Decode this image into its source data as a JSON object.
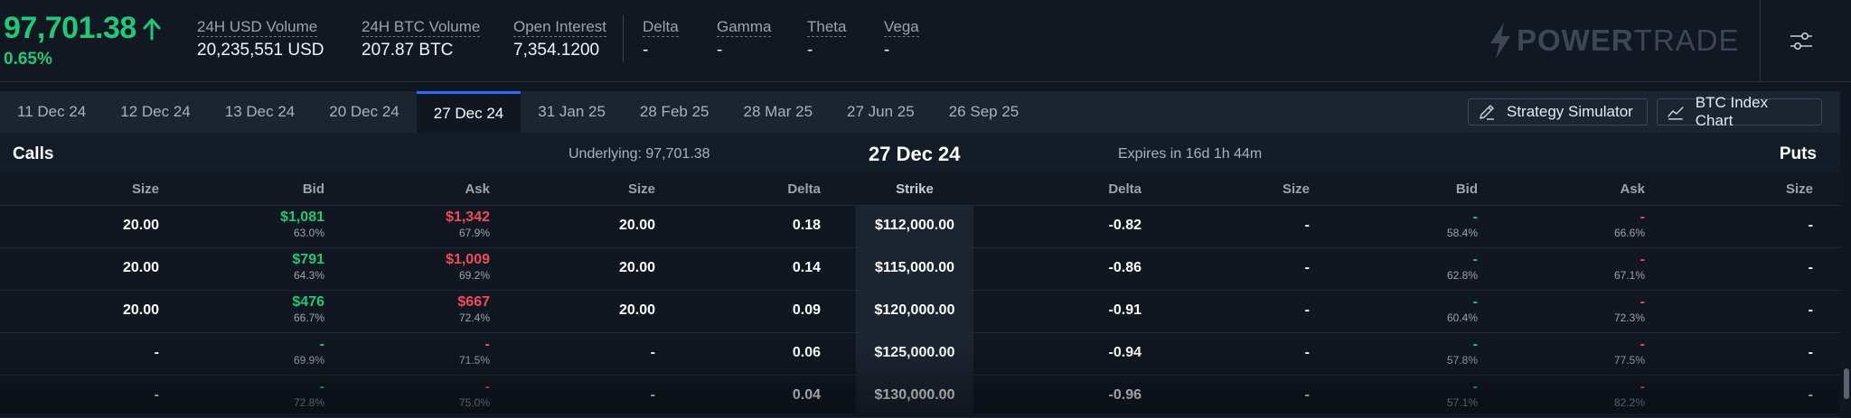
{
  "header": {
    "price": "97,701.38",
    "change": "0.65%",
    "stats": [
      {
        "label": "24H USD Volume",
        "value": "20,235,551 USD"
      },
      {
        "label": "24H BTC Volume",
        "value": "207.87 BTC"
      },
      {
        "label": "Open Interest",
        "value": "7,354.1200"
      },
      {
        "label": "Delta",
        "value": "-"
      },
      {
        "label": "Gamma",
        "value": "-"
      },
      {
        "label": "Theta",
        "value": "-"
      },
      {
        "label": "Vega",
        "value": "-"
      }
    ],
    "logo_bold": "POWER",
    "logo_light": "TRADE"
  },
  "tabs": [
    "11 Dec 24",
    "12 Dec 24",
    "13 Dec 24",
    "20 Dec 24",
    "27 Dec 24",
    "31 Jan 25",
    "28 Feb 25",
    "28 Mar 25",
    "27 Jun 25",
    "26 Sep 25"
  ],
  "active_tab": "27 Dec 24",
  "tools": {
    "strategy_simulator": "Strategy Simulator",
    "btc_index_chart": "BTC Index Chart"
  },
  "table": {
    "calls_label": "Calls",
    "puts_label": "Puts",
    "underlying": "Underlying: 97,701.38",
    "expiry_date": "27 Dec 24",
    "expires_in": "Expires in 16d 1h 44m",
    "columns": [
      "Size",
      "Bid",
      "Ask",
      "Size",
      "Delta",
      "Strike",
      "Delta",
      "Size",
      "Bid",
      "Ask",
      "Size"
    ],
    "rows": [
      {
        "call_size": "20.00",
        "call_bid": "$1,081",
        "call_bid_iv": "63.0%",
        "call_ask": "$1,342",
        "call_ask_iv": "67.9%",
        "call_ask_size": "20.00",
        "call_delta": "0.18",
        "strike": "$112,000.00",
        "put_delta": "-0.82",
        "put_bid_size": "-",
        "put_bid": "-",
        "put_bid_iv": "58.4%",
        "put_ask": "-",
        "put_ask_iv": "66.6%",
        "put_ask_size": "-"
      },
      {
        "call_size": "20.00",
        "call_bid": "$791",
        "call_bid_iv": "64.3%",
        "call_ask": "$1,009",
        "call_ask_iv": "69.2%",
        "call_ask_size": "20.00",
        "call_delta": "0.14",
        "strike": "$115,000.00",
        "put_delta": "-0.86",
        "put_bid_size": "-",
        "put_bid": "-",
        "put_bid_iv": "62.8%",
        "put_ask": "-",
        "put_ask_iv": "67.1%",
        "put_ask_size": "-"
      },
      {
        "call_size": "20.00",
        "call_bid": "$476",
        "call_bid_iv": "66.7%",
        "call_ask": "$667",
        "call_ask_iv": "72.4%",
        "call_ask_size": "20.00",
        "call_delta": "0.09",
        "strike": "$120,000.00",
        "put_delta": "-0.91",
        "put_bid_size": "-",
        "put_bid": "-",
        "put_bid_iv": "60.4%",
        "put_ask": "-",
        "put_ask_iv": "72.3%",
        "put_ask_size": "-"
      },
      {
        "call_size": "-",
        "call_bid": "-",
        "call_bid_iv": "69.9%",
        "call_ask": "-",
        "call_ask_iv": "71.5%",
        "call_ask_size": "-",
        "call_delta": "0.06",
        "strike": "$125,000.00",
        "put_delta": "-0.94",
        "put_bid_size": "-",
        "put_bid": "-",
        "put_bid_iv": "57.8%",
        "put_ask": "-",
        "put_ask_iv": "77.5%",
        "put_ask_size": "-"
      },
      {
        "call_size": "-",
        "call_bid": "-",
        "call_bid_iv": "72.8%",
        "call_ask": "-",
        "call_ask_iv": "75.0%",
        "call_ask_size": "-",
        "call_delta": "0.04",
        "strike": "$130,000.00",
        "put_delta": "-0.96",
        "put_bid_size": "-",
        "put_bid": "-",
        "put_bid_iv": "57.1%",
        "put_ask": "-",
        "put_ask_iv": "82.2%",
        "put_ask_size": "-"
      }
    ]
  },
  "colors": {
    "positive": "#22c777",
    "negative": "#f04a5c",
    "accent": "#2f6bff",
    "background": "#101720"
  },
  "icons": {
    "price_direction": "arrow-up-icon",
    "settings": "sliders-icon",
    "strategy": "pencil-ruler-icon",
    "chart": "line-chart-icon",
    "logo": "bolt-icon"
  }
}
